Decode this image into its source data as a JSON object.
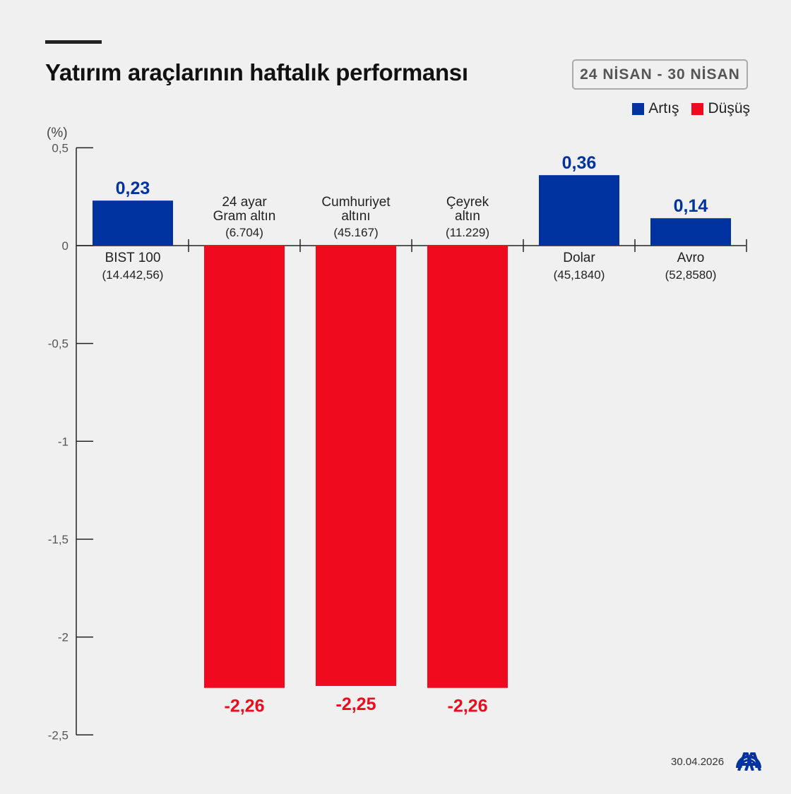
{
  "title": "Yatırım araçlarının haftalık performansı",
  "date_range": "24 NİSAN - 30 NİSAN",
  "legend": [
    {
      "label": "Artış",
      "color": "#0033a0"
    },
    {
      "label": "Düşüş",
      "color": "#f00a1e"
    }
  ],
  "footer_date": "30.04.2026",
  "logo_text": "AA",
  "chart_data": {
    "type": "bar",
    "title": "Yatırım araçlarının haftalık performansı",
    "ylabel": "(%)",
    "ylim": [
      -2.5,
      0.5
    ],
    "yticks": [
      0.5,
      0,
      -0.5,
      -1,
      -1.5,
      -2,
      -2.5
    ],
    "ytick_labels": [
      "0,5",
      "0",
      "-0,5",
      "-1",
      "-1,5",
      "-2",
      "-2,5"
    ],
    "categories": [
      {
        "lines": [
          "BIST 100"
        ],
        "sub": "(14.442,56)"
      },
      {
        "lines": [
          "24 ayar",
          "Gram altın"
        ],
        "sub": "(6.704)"
      },
      {
        "lines": [
          "Cumhuriyet",
          "altını"
        ],
        "sub": "(45.167)"
      },
      {
        "lines": [
          "Çeyrek",
          "altın"
        ],
        "sub": "(11.229)"
      },
      {
        "lines": [
          "Dolar"
        ],
        "sub": "(45,1840)"
      },
      {
        "lines": [
          "Avro"
        ],
        "sub": "(52,8580)"
      }
    ],
    "values": [
      0.23,
      -2.26,
      -2.25,
      -2.26,
      0.36,
      0.14
    ],
    "value_labels": [
      "0,23",
      "-2,26",
      "-2,25",
      "-2,26",
      "0,36",
      "0,14"
    ],
    "colors": {
      "positive": "#0033a0",
      "negative": "#f00a1e"
    },
    "grid": false,
    "legend_position": "top-right"
  }
}
